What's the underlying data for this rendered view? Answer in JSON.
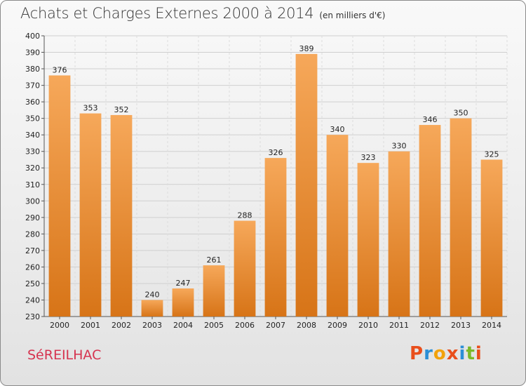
{
  "header": {
    "title": "Achats et Charges Externes 2000 à 2014",
    "unit": "(en milliers d'€)"
  },
  "commune": "SéREILHAC",
  "brand": {
    "letters": [
      "P",
      "r",
      "o",
      "x",
      "i",
      "t",
      "i"
    ],
    "colors": [
      "#e94e1b",
      "#2c8fd6",
      "#f2a20b",
      "#e94e1b",
      "#2c8fd6",
      "#7bb928",
      "#e94e1b"
    ]
  },
  "chart_data": {
    "type": "bar",
    "title": "Achats et Charges Externes 2000 à 2014",
    "subtitle": "(en milliers d'€)",
    "categories": [
      "2000",
      "2001",
      "2002",
      "2003",
      "2004",
      "2005",
      "2006",
      "2007",
      "2008",
      "2009",
      "2010",
      "2011",
      "2012",
      "2013",
      "2014"
    ],
    "values": [
      376,
      353,
      352,
      240,
      247,
      261,
      288,
      326,
      389,
      340,
      323,
      330,
      346,
      350,
      325
    ],
    "value_labels": [
      "376",
      "353",
      "352",
      "240",
      "247",
      "261",
      "288",
      "326",
      "389",
      "340",
      "323",
      "330",
      "346",
      "350",
      "325"
    ],
    "ylim": [
      230,
      400
    ],
    "yticks": [
      "230",
      "240",
      "250",
      "260",
      "270",
      "280",
      "290",
      "300",
      "310",
      "320",
      "330",
      "340",
      "350",
      "360",
      "370",
      "380",
      "390",
      "400"
    ],
    "grid": true,
    "bar_color_top": "#f6a85a",
    "bar_color_bottom": "#d77417"
  }
}
